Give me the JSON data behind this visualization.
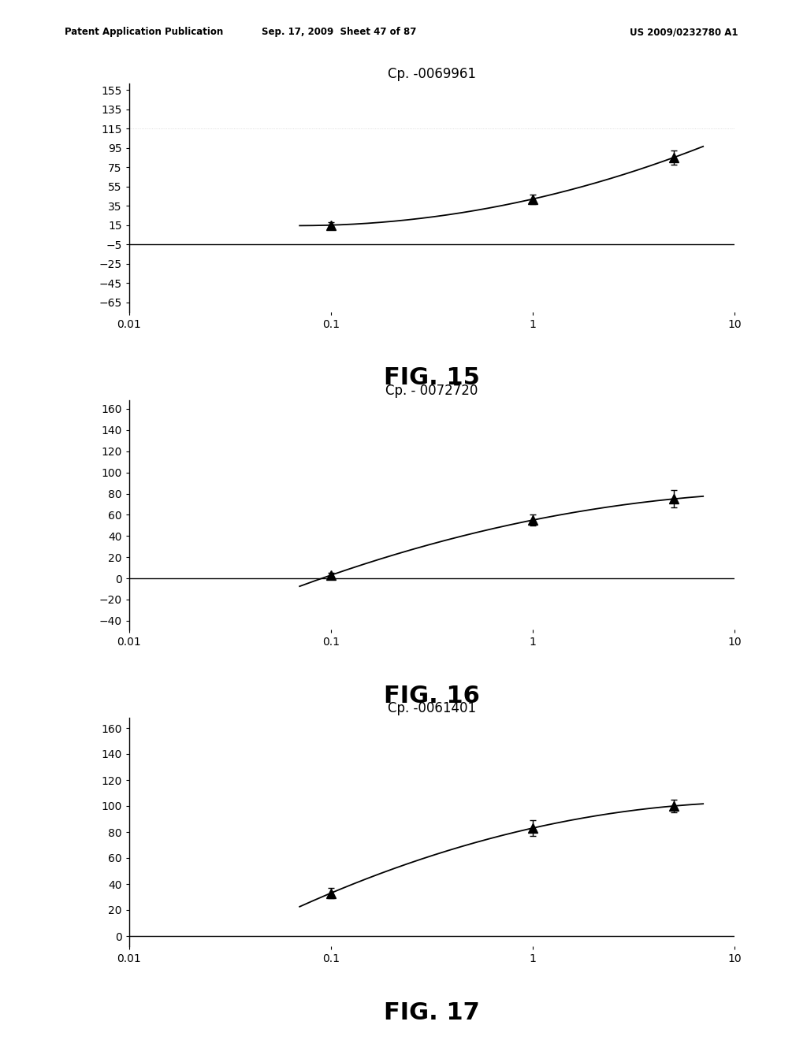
{
  "fig15": {
    "title": "Cp. -0069961",
    "x": [
      0.1,
      1.0,
      5.0
    ],
    "y": [
      15,
      42,
      85
    ],
    "yerr": [
      3,
      5,
      7
    ],
    "yticks": [
      -65,
      -45,
      -25,
      -5,
      15,
      35,
      55,
      75,
      95,
      115,
      135,
      155
    ],
    "ylim": [
      -75,
      162
    ],
    "axhline_y": -5,
    "fig_label": "FIG. 15",
    "curve_xstart": 0.07,
    "curve_xend": 7.0
  },
  "fig16": {
    "title": "Cp. - 0072720",
    "x": [
      0.1,
      1.0,
      5.0
    ],
    "y": [
      3,
      55,
      75
    ],
    "yerr": [
      2,
      5,
      8
    ],
    "yticks": [
      -40,
      -20,
      0,
      20,
      40,
      60,
      80,
      100,
      120,
      140,
      160
    ],
    "ylim": [
      -48,
      168
    ],
    "axhline_y": 0,
    "fig_label": "FIG. 16",
    "curve_xstart": 0.07,
    "curve_xend": 7.0
  },
  "fig17": {
    "title": "Cp. -0061401",
    "x": [
      0.1,
      1.0,
      5.0
    ],
    "y": [
      33,
      83,
      100
    ],
    "yerr": [
      4,
      6,
      5
    ],
    "yticks": [
      0,
      20,
      40,
      60,
      80,
      100,
      120,
      140,
      160
    ],
    "ylim": [
      -8,
      168
    ],
    "axhline_y": 0,
    "fig_label": "FIG. 17",
    "curve_xstart": 0.07,
    "curve_xend": 7.0
  },
  "xticks": [
    0.01,
    0.1,
    1,
    10
  ],
  "xticklabels": [
    "0.01",
    "0.1",
    "1",
    "10"
  ],
  "xlim": [
    0.01,
    10
  ],
  "background_color": "#ffffff",
  "line_color": "#000000",
  "marker_color": "#000000",
  "header_left": "Patent Application Publication",
  "header_mid": "Sep. 17, 2009  Sheet 47 of 87",
  "header_right": "US 2009/0232780 A1",
  "title_fontsize": 12,
  "tick_fontsize": 10,
  "fig_label_fontsize": 22,
  "header_fontsize": 8.5
}
